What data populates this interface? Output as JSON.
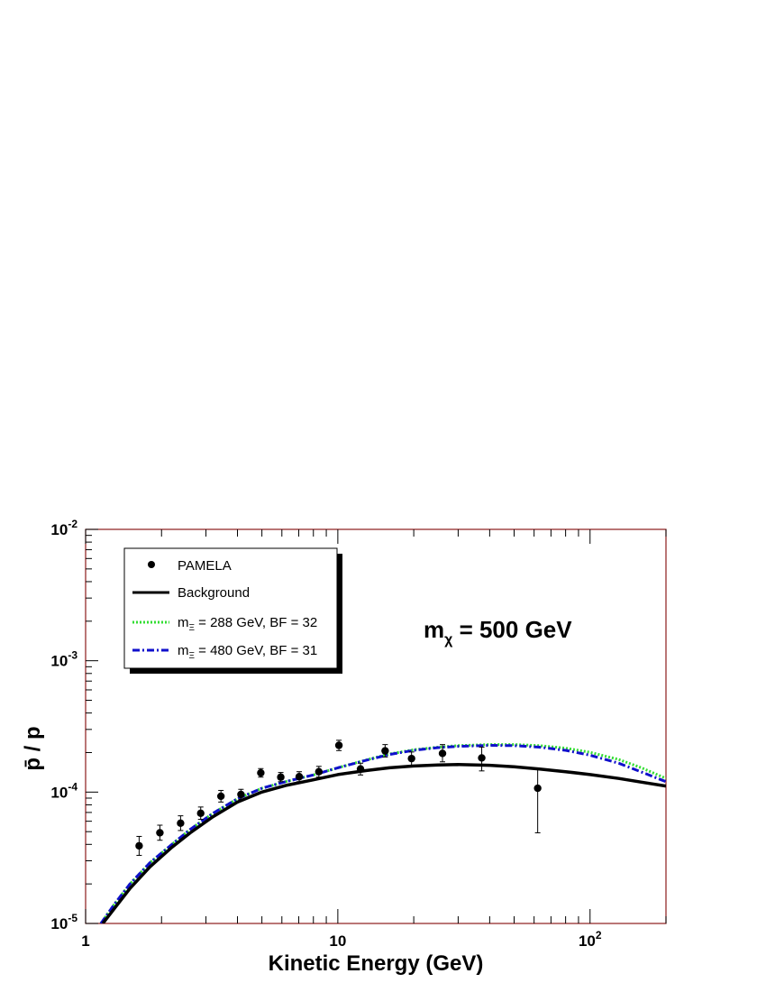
{
  "chart_data": {
    "type": "line",
    "xscale": "log",
    "yscale": "log",
    "xlim": [
      1,
      200
    ],
    "ylim": [
      1e-05,
      0.01
    ],
    "xlabel": "Kinetic Energy (GeV)",
    "ylabel": "p̄ / p",
    "x_ticks": [
      {
        "value": 1,
        "base": "1",
        "exp": ""
      },
      {
        "value": 10,
        "base": "10",
        "exp": ""
      },
      {
        "value": 100,
        "base": "10",
        "exp": "2"
      }
    ],
    "y_ticks": [
      {
        "value": 1e-05,
        "base": "10",
        "exp": "-5"
      },
      {
        "value": 0.0001,
        "base": "10",
        "exp": "-4"
      },
      {
        "value": 0.001,
        "base": "10",
        "exp": "-3"
      },
      {
        "value": 0.01,
        "base": "10",
        "exp": "-2"
      }
    ],
    "annotation": {
      "main": "m",
      "sub": "χ",
      "rest": " = 500 GeV"
    },
    "points": {
      "name": "PAMELA",
      "color": "#000000",
      "data": [
        {
          "x": 1.63,
          "y": 3.9e-05,
          "lo": 3.3e-05,
          "hi": 4.6e-05
        },
        {
          "x": 1.97,
          "y": 4.9e-05,
          "lo": 4.3e-05,
          "hi": 5.6e-05
        },
        {
          "x": 2.38,
          "y": 5.8e-05,
          "lo": 5.1e-05,
          "hi": 6.6e-05
        },
        {
          "x": 2.86,
          "y": 6.9e-05,
          "lo": 6.2e-05,
          "hi": 7.7e-05
        },
        {
          "x": 3.44,
          "y": 9.3e-05,
          "lo": 8.4e-05,
          "hi": 0.000103
        },
        {
          "x": 4.13,
          "y": 9.6e-05,
          "lo": 8.8e-05,
          "hi": 0.000105
        },
        {
          "x": 4.95,
          "y": 0.00014,
          "lo": 0.00013,
          "hi": 0.000151
        },
        {
          "x": 5.94,
          "y": 0.00013,
          "lo": 0.00012,
          "hi": 0.000141
        },
        {
          "x": 7.03,
          "y": 0.000131,
          "lo": 0.00012,
          "hi": 0.000143
        },
        {
          "x": 8.41,
          "y": 0.000143,
          "lo": 0.00013,
          "hi": 0.000157
        },
        {
          "x": 10.1,
          "y": 0.000227,
          "lo": 0.000207,
          "hi": 0.000248
        },
        {
          "x": 12.3,
          "y": 0.00015,
          "lo": 0.000135,
          "hi": 0.000166
        },
        {
          "x": 15.4,
          "y": 0.000206,
          "lo": 0.000185,
          "hi": 0.00023
        },
        {
          "x": 19.6,
          "y": 0.00018,
          "lo": 0.00016,
          "hi": 0.000202
        },
        {
          "x": 26.0,
          "y": 0.000197,
          "lo": 0.00017,
          "hi": 0.00023
        },
        {
          "x": 37.2,
          "y": 0.000182,
          "lo": 0.000145,
          "hi": 0.00022
        },
        {
          "x": 62.0,
          "y": 0.000107,
          "lo": 4.9e-05,
          "hi": 0.00015
        }
      ]
    },
    "series": [
      {
        "name": "Background",
        "color": "#000000",
        "style": "solid",
        "x": [
          1.17,
          1.3,
          1.5,
          1.8,
          2.2,
          2.6,
          3.2,
          4,
          5,
          6.3,
          8,
          10,
          13,
          16,
          20,
          25,
          30,
          40,
          50,
          63,
          80,
          100,
          130,
          160,
          200
        ],
        "y": [
          1e-05,
          1.3e-05,
          1.85e-05,
          2.7e-05,
          3.8e-05,
          4.9e-05,
          6.5e-05,
          8.4e-05,
          0.0001,
          0.000113,
          0.000124,
          0.000136,
          0.000146,
          0.000153,
          0.000158,
          0.000161,
          0.000162,
          0.00016,
          0.000156,
          0.00015,
          0.000143,
          0.000136,
          0.000127,
          0.000119,
          0.000111
        ]
      },
      {
        "name": "m_Ξ = 288 GeV, BF = 32",
        "label": {
          "main": "m",
          "sub": "Ξ",
          "rest": " = 288 GeV, BF = 32"
        },
        "color": "#33dd33",
        "style": "dotted",
        "x": [
          1.15,
          1.3,
          1.5,
          1.8,
          2.2,
          2.6,
          3.2,
          4,
          5,
          6.3,
          8,
          10,
          13,
          16,
          20,
          25,
          30,
          40,
          50,
          63,
          80,
          100,
          130,
          160,
          200
        ],
        "y": [
          1e-05,
          1.4e-05,
          2e-05,
          2.9e-05,
          4e-05,
          5.2e-05,
          6.9e-05,
          8.9e-05,
          0.000107,
          0.000121,
          0.000135,
          0.000153,
          0.000176,
          0.000195,
          0.00021,
          0.00022,
          0.000226,
          0.00023,
          0.00023,
          0.000226,
          0.000216,
          0.000201,
          0.000177,
          0.000153,
          0.000127
        ]
      },
      {
        "name": "m_Ξ = 480 GeV, BF = 31",
        "label": {
          "main": "m",
          "sub": "Ξ",
          "rest": " = 480 GeV, BF = 31"
        },
        "color": "#1010cc",
        "style": "dashdot",
        "x": [
          1.15,
          1.3,
          1.5,
          1.8,
          2.2,
          2.6,
          3.2,
          4,
          5,
          6.3,
          8,
          10,
          13,
          16,
          20,
          25,
          30,
          40,
          50,
          63,
          80,
          100,
          130,
          160,
          200
        ],
        "y": [
          1e-05,
          1.4e-05,
          2e-05,
          2.9e-05,
          4e-05,
          5.2e-05,
          6.9e-05,
          8.9e-05,
          0.000107,
          0.000121,
          0.000135,
          0.000153,
          0.000175,
          0.000193,
          0.000208,
          0.000218,
          0.000223,
          0.000227,
          0.000226,
          0.00022,
          0.000208,
          0.000191,
          0.000166,
          0.000142,
          0.00012
        ]
      }
    ],
    "legend": {
      "placement": "top-left"
    }
  }
}
